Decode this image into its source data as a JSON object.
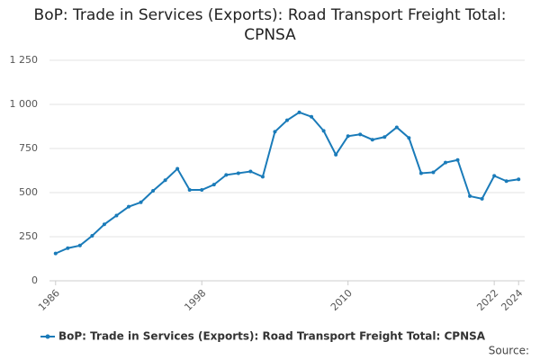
{
  "chart_data": {
    "type": "line",
    "title": "BoP: Trade in Services (Exports): Road Transport Freight Total: CPNSA",
    "source": "Source:",
    "x": [
      1986,
      1987,
      1988,
      1989,
      1990,
      1991,
      1992,
      1993,
      1994,
      1995,
      1996,
      1997,
      1998,
      1999,
      2000,
      2001,
      2002,
      2003,
      2004,
      2005,
      2006,
      2007,
      2008,
      2009,
      2010,
      2011,
      2012,
      2013,
      2014,
      2015,
      2016,
      2017,
      2018,
      2019,
      2020,
      2021,
      2022,
      2023,
      2024
    ],
    "series": [
      {
        "name": "BoP: Trade in Services (Exports): Road Transport Freight Total: CPNSA",
        "color": "#1a7bb9",
        "values": [
          155,
          185,
          200,
          255,
          320,
          370,
          420,
          445,
          510,
          570,
          635,
          515,
          515,
          545,
          600,
          610,
          620,
          590,
          845,
          910,
          955,
          930,
          850,
          715,
          820,
          830,
          800,
          815,
          870,
          810,
          610,
          615,
          670,
          685,
          480,
          465,
          595,
          565,
          575
        ]
      }
    ],
    "xlim": [
      1985.5,
      2024.5
    ],
    "xticks": [
      1986,
      1998,
      2010,
      2022,
      2024
    ],
    "ylim": [
      0,
      1250
    ],
    "yticks": [
      0,
      250,
      500,
      750,
      {
        "value": 1000,
        "label": "1 000"
      },
      {
        "value": 1250,
        "label": "1 250"
      }
    ],
    "grid": true
  }
}
